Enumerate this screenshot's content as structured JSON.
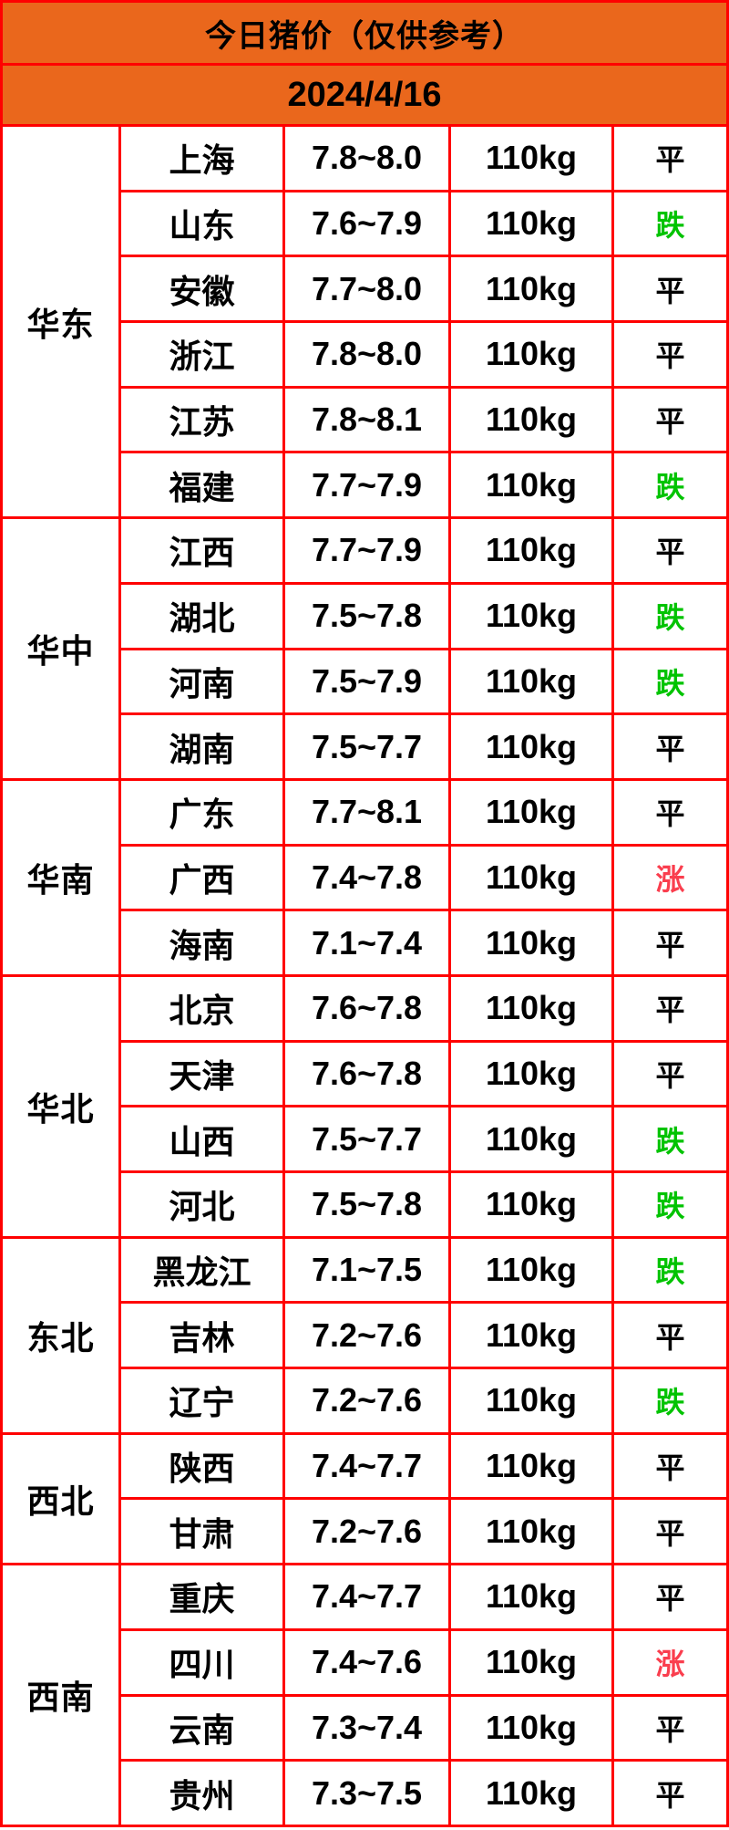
{
  "header": {
    "title": "今日猪价（仅供参考）",
    "date": "2024/4/16"
  },
  "palette": {
    "header_bg": "#ea671c",
    "border": "#ff0000",
    "text": "#000000",
    "trend_flat": "#000000",
    "trend_down": "#00c300",
    "trend_up": "#fa3e4e"
  },
  "table": {
    "groups": [
      {
        "region": "华东",
        "rows": [
          {
            "province": "上海",
            "price": "7.8~8.0",
            "weight": "110kg",
            "status": "平",
            "trend": "flat"
          },
          {
            "province": "山东",
            "price": "7.6~7.9",
            "weight": "110kg",
            "status": "跌",
            "trend": "down"
          },
          {
            "province": "安徽",
            "price": "7.7~8.0",
            "weight": "110kg",
            "status": "平",
            "trend": "flat"
          },
          {
            "province": "浙江",
            "price": "7.8~8.0",
            "weight": "110kg",
            "status": "平",
            "trend": "flat"
          },
          {
            "province": "江苏",
            "price": "7.8~8.1",
            "weight": "110kg",
            "status": "平",
            "trend": "flat"
          },
          {
            "province": "福建",
            "price": "7.7~7.9",
            "weight": "110kg",
            "status": "跌",
            "trend": "down"
          }
        ]
      },
      {
        "region": "华中",
        "rows": [
          {
            "province": "江西",
            "price": "7.7~7.9",
            "weight": "110kg",
            "status": "平",
            "trend": "flat"
          },
          {
            "province": "湖北",
            "price": "7.5~7.8",
            "weight": "110kg",
            "status": "跌",
            "trend": "down"
          },
          {
            "province": "河南",
            "price": "7.5~7.9",
            "weight": "110kg",
            "status": "跌",
            "trend": "down"
          },
          {
            "province": "湖南",
            "price": "7.5~7.7",
            "weight": "110kg",
            "status": "平",
            "trend": "flat"
          }
        ]
      },
      {
        "region": "华南",
        "rows": [
          {
            "province": "广东",
            "price": "7.7~8.1",
            "weight": "110kg",
            "status": "平",
            "trend": "flat"
          },
          {
            "province": "广西",
            "price": "7.4~7.8",
            "weight": "110kg",
            "status": "涨",
            "trend": "up"
          },
          {
            "province": "海南",
            "price": "7.1~7.4",
            "weight": "110kg",
            "status": "平",
            "trend": "flat"
          }
        ]
      },
      {
        "region": "华北",
        "rows": [
          {
            "province": "北京",
            "price": "7.6~7.8",
            "weight": "110kg",
            "status": "平",
            "trend": "flat"
          },
          {
            "province": "天津",
            "price": "7.6~7.8",
            "weight": "110kg",
            "status": "平",
            "trend": "flat"
          },
          {
            "province": "山西",
            "price": "7.5~7.7",
            "weight": "110kg",
            "status": "跌",
            "trend": "down"
          },
          {
            "province": "河北",
            "price": "7.5~7.8",
            "weight": "110kg",
            "status": "跌",
            "trend": "down"
          }
        ]
      },
      {
        "region": "东北",
        "rows": [
          {
            "province": "黑龙江",
            "price": "7.1~7.5",
            "weight": "110kg",
            "status": "跌",
            "trend": "down"
          },
          {
            "province": "吉林",
            "price": "7.2~7.6",
            "weight": "110kg",
            "status": "平",
            "trend": "flat"
          },
          {
            "province": "辽宁",
            "price": "7.2~7.6",
            "weight": "110kg",
            "status": "跌",
            "trend": "down"
          }
        ]
      },
      {
        "region": "西北",
        "rows": [
          {
            "province": "陕西",
            "price": "7.4~7.7",
            "weight": "110kg",
            "status": "平",
            "trend": "flat"
          },
          {
            "province": "甘肃",
            "price": "7.2~7.6",
            "weight": "110kg",
            "status": "平",
            "trend": "flat"
          }
        ]
      },
      {
        "region": "西南",
        "rows": [
          {
            "province": "重庆",
            "price": "7.4~7.7",
            "weight": "110kg",
            "status": "平",
            "trend": "flat"
          },
          {
            "province": "四川",
            "price": "7.4~7.6",
            "weight": "110kg",
            "status": "涨",
            "trend": "up"
          },
          {
            "province": "云南",
            "price": "7.3~7.4",
            "weight": "110kg",
            "status": "平",
            "trend": "flat"
          },
          {
            "province": "贵州",
            "price": "7.3~7.5",
            "weight": "110kg",
            "status": "平",
            "trend": "flat"
          }
        ]
      }
    ]
  }
}
